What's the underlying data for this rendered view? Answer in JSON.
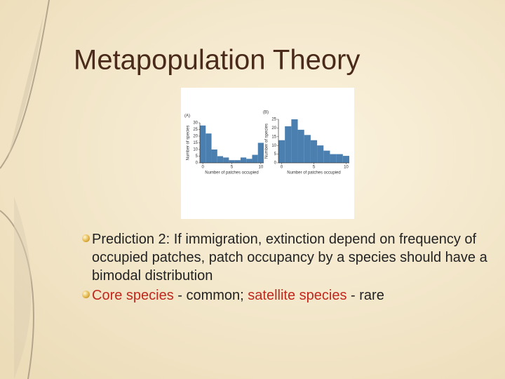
{
  "title": "Metapopulation Theory",
  "figure": {
    "panels": [
      {
        "type": "histogram",
        "label": "(A)",
        "xlabel": "Number of patches occupied",
        "ylabel": "Number of species",
        "bins": [
          -0.5,
          0.5,
          1.5,
          2.5,
          3.5,
          4.5,
          5.5,
          6.5,
          7.5,
          8.5,
          9.5,
          10.5
        ],
        "counts": [
          28,
          22,
          10,
          5,
          4,
          2,
          2,
          4,
          3,
          6,
          15
        ],
        "color": "#4a7fb0",
        "xlim": [
          -0.5,
          10.5
        ],
        "xticks": [
          0,
          5,
          10
        ],
        "ylim": [
          0,
          30
        ],
        "yticks": [
          0,
          5,
          10,
          15,
          20,
          25,
          30
        ]
      },
      {
        "type": "histogram",
        "label": "(B)",
        "xlabel": "Number of patches occupied",
        "ylabel": "Number of species",
        "bins": [
          -0.5,
          0.5,
          1.5,
          2.5,
          3.5,
          4.5,
          5.5,
          6.5,
          7.5,
          8.5,
          9.5,
          10.5
        ],
        "counts": [
          13,
          21,
          25,
          19,
          16,
          13,
          10,
          7,
          5,
          5,
          4
        ],
        "color": "#4a7fb0",
        "xlim": [
          -0.5,
          10.5
        ],
        "xticks": [
          0,
          5,
          10
        ],
        "ylim": [
          0,
          25
        ],
        "yticks": [
          0,
          5,
          10,
          15,
          20,
          25
        ]
      }
    ]
  },
  "bullets": [
    {
      "spans": [
        {
          "text": "Prediction 2: If immigration, extinction depend on frequency of occupied patches, patch occupancy by a species should have a bimodal distribution"
        }
      ]
    },
    {
      "spans": [
        {
          "text": "Core species",
          "color": "#c0281e"
        },
        {
          "text": " - common; "
        },
        {
          "text": "satellite species",
          "color": "#c0281e"
        },
        {
          "text": " - rare"
        }
      ]
    }
  ]
}
